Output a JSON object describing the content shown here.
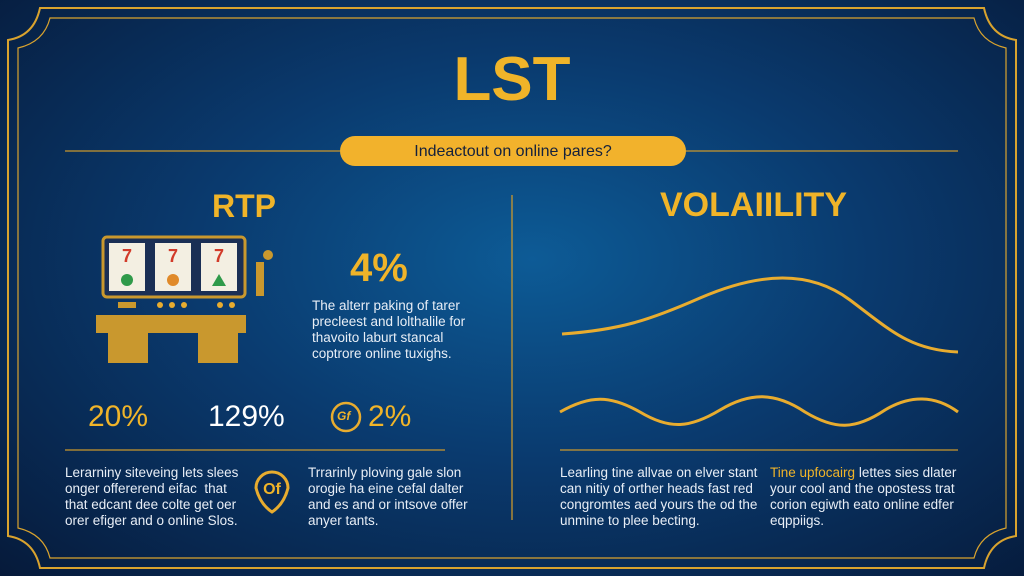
{
  "header": {
    "title": "LST",
    "banner": "Indeactout on online pares?"
  },
  "rtp": {
    "heading": "RTP",
    "stat": "4%",
    "description": [
      "The alterr paking of tarer",
      "precleest and lolthalile for",
      "thavoito laburt stancal",
      "coptrore online tuxighs."
    ],
    "stats": [
      "20%",
      "129%",
      "2%"
    ],
    "stat_icon": "Gf"
  },
  "bottom_left": {
    "paragraph_1": [
      "Lerarniny siteveing lets slees",
      "onger offererend eifac  that",
      "that edcant dee colte get oer",
      "orer efiger and o online Slos."
    ],
    "badge": "Of",
    "paragraph_2": [
      "Trrarinly ploving gale slon",
      "orogie ha eine cefal dalter",
      "and es and or intsove offer",
      "anyer tants."
    ]
  },
  "volatility": {
    "heading": "VOLAIILITY"
  },
  "bottom_right": {
    "paragraph_1": [
      "Learling tine allvae on elver stant",
      "can nitiy of orther heads fast red",
      "congromtes aed yours the od the",
      "unmine to plee becting."
    ],
    "paragraph_2_highlight": "Tine upfocairg",
    "paragraph_2": [
      "lettes sies dlater",
      "your cool and the opostess trat",
      "corion egiwth eato online edfer",
      "eqppiigs."
    ]
  }
}
